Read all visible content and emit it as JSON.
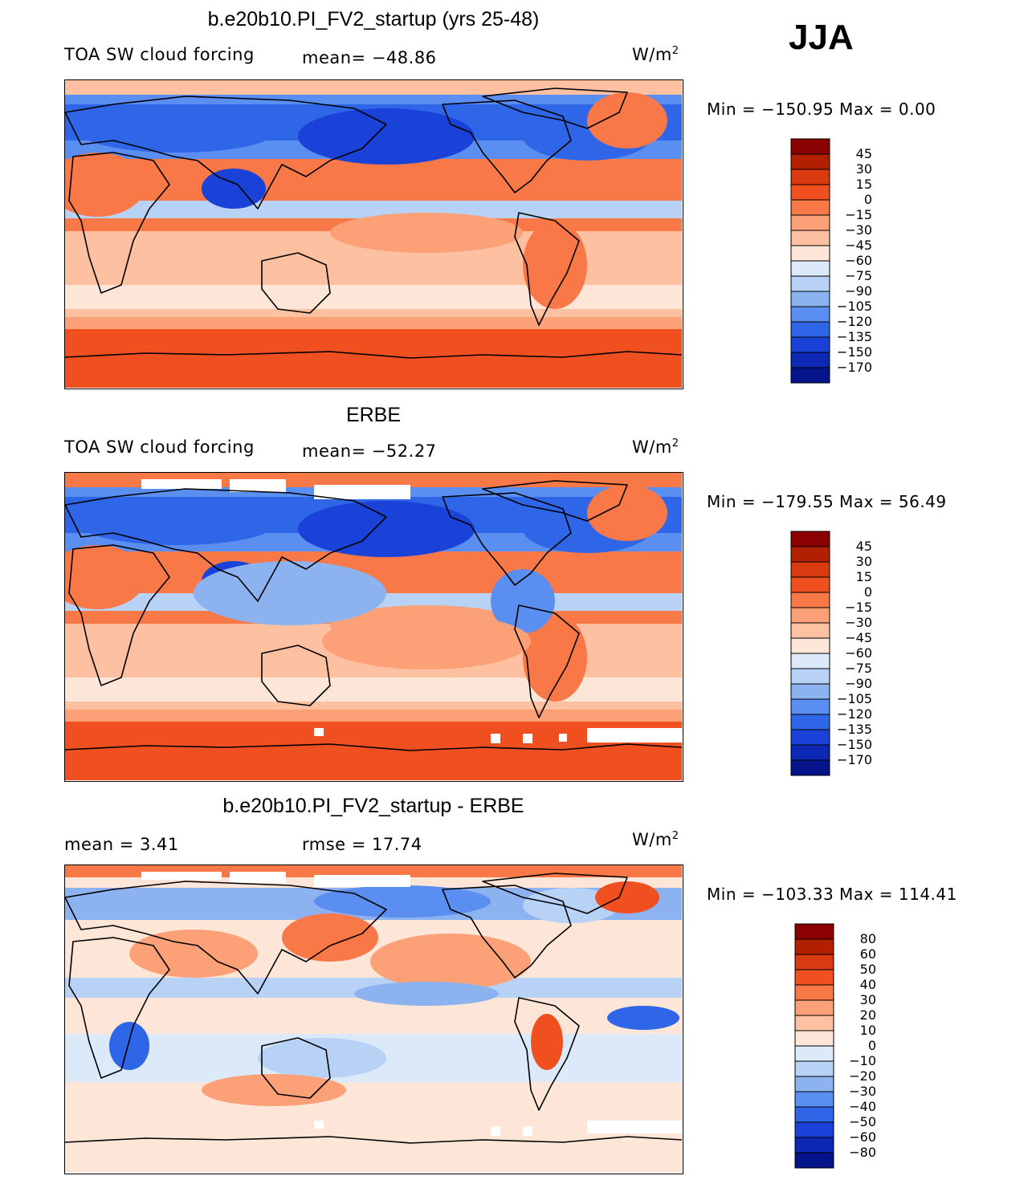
{
  "season": "JJA",
  "panels": [
    {
      "title": "b.e20b10.PI_FV2_startup (yrs 25-48)",
      "left_label": "TOA SW cloud forcing",
      "mid_label": "mean= −48.86",
      "units": "W/m",
      "units_sup": "2",
      "minmax": "Min = −150.95 Max =    0.00"
    },
    {
      "title": "ERBE",
      "left_label": "TOA SW cloud forcing",
      "mid_label": "mean= −52.27",
      "units": "W/m",
      "units_sup": "2",
      "minmax": "Min = −179.55 Max =  56.49"
    },
    {
      "title": "b.e20b10.PI_FV2_startup - ERBE",
      "left_label": "mean =    3.41",
      "mid_label": "rmse =   17.74",
      "units": "W/m",
      "units_sup": "2",
      "minmax": "Min = −103.33 Max = 114.41"
    }
  ],
  "chart_data": [
    {
      "type": "heatmap",
      "title": "b.e20b10.PI_FV2_startup (yrs 25-48)",
      "variable": "TOA SW cloud forcing",
      "mean": -48.86,
      "min": -150.95,
      "max": 0.0,
      "units": "W/m2",
      "colorbar_levels": [
        "45",
        "30",
        "15",
        "0",
        "−15",
        "−30",
        "−45",
        "−60",
        "−75",
        "−90",
        "−105",
        "−120",
        "−135",
        "−150",
        "−170"
      ],
      "colorbar_colors": [
        "#8b0000",
        "#b22000",
        "#d93a10",
        "#f05020",
        "#f87848",
        "#fca078",
        "#fdc0a0",
        "#fde6d8",
        "#dbe9f8",
        "#b8d2f5",
        "#8cb3f0",
        "#5a8ef0",
        "#2f66e8",
        "#1a42d8",
        "#0d28b5",
        "#05148a"
      ]
    },
    {
      "type": "heatmap",
      "title": "ERBE",
      "variable": "TOA SW cloud forcing",
      "mean": -52.27,
      "min": -179.55,
      "max": 56.49,
      "units": "W/m2",
      "colorbar_levels": [
        "45",
        "30",
        "15",
        "0",
        "−15",
        "−30",
        "−45",
        "−60",
        "−75",
        "−90",
        "−105",
        "−120",
        "−135",
        "−150",
        "−170"
      ],
      "colorbar_colors": [
        "#8b0000",
        "#b22000",
        "#d93a10",
        "#f05020",
        "#f87848",
        "#fca078",
        "#fdc0a0",
        "#fde6d8",
        "#dbe9f8",
        "#b8d2f5",
        "#8cb3f0",
        "#5a8ef0",
        "#2f66e8",
        "#1a42d8",
        "#0d28b5",
        "#05148a"
      ]
    },
    {
      "type": "heatmap",
      "title": "b.e20b10.PI_FV2_startup - ERBE",
      "mean": 3.41,
      "rmse": 17.74,
      "min": -103.33,
      "max": 114.41,
      "units": "W/m2",
      "colorbar_levels": [
        "80",
        "60",
        "50",
        "40",
        "30",
        "20",
        "10",
        "0",
        "−10",
        "−20",
        "−30",
        "−40",
        "−50",
        "−60",
        "−80"
      ],
      "colorbar_colors": [
        "#8b0000",
        "#b22000",
        "#d93a10",
        "#f05020",
        "#f87848",
        "#fca078",
        "#fdc0a0",
        "#fde6d8",
        "#dbe9f8",
        "#b8d2f5",
        "#8cb3f0",
        "#5a8ef0",
        "#2f66e8",
        "#1a42d8",
        "#0d28b5",
        "#05148a"
      ]
    }
  ]
}
